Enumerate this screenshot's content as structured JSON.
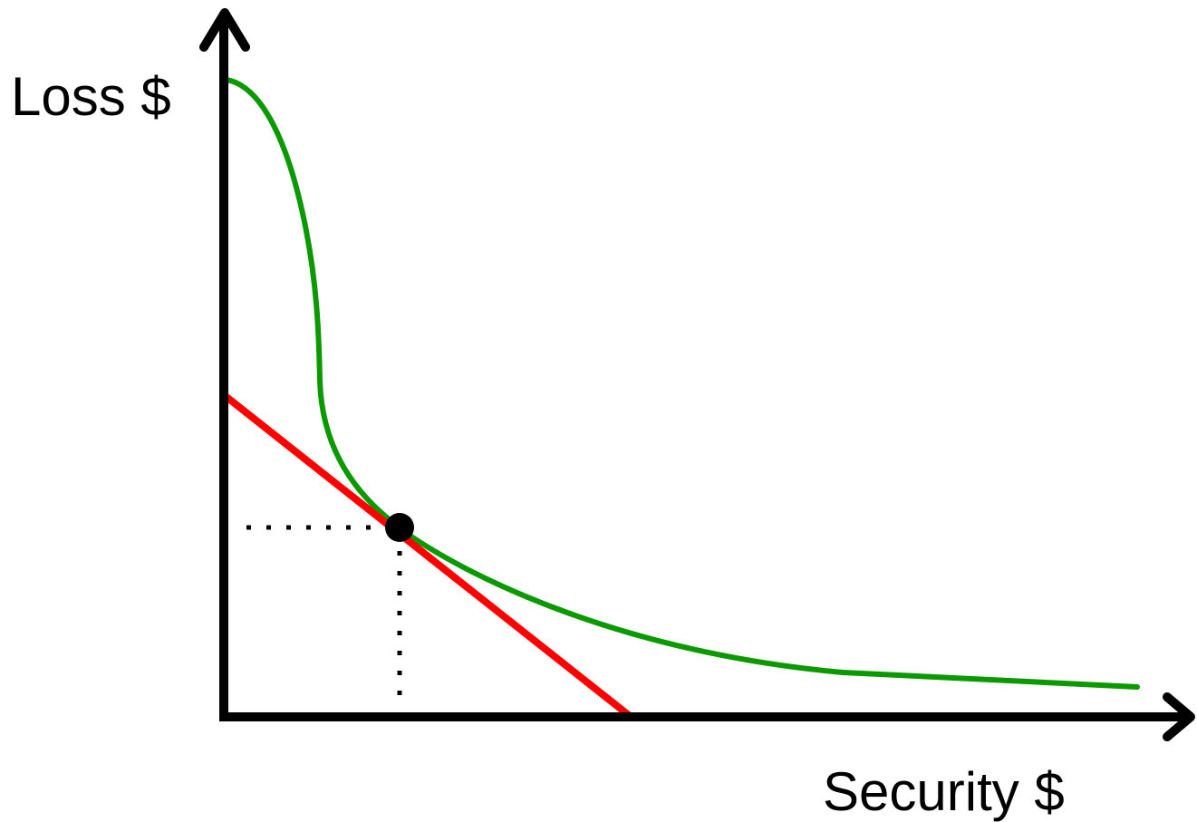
{
  "labels": {
    "y_axis": "Loss $",
    "x_axis": "Security $"
  },
  "colors": {
    "axes": "#000000",
    "loss_curve": "#0a9a00",
    "budget_line": "#ff0000",
    "optimum_point": "#000000",
    "guides": "#000000",
    "background": "#ffffff"
  }
}
